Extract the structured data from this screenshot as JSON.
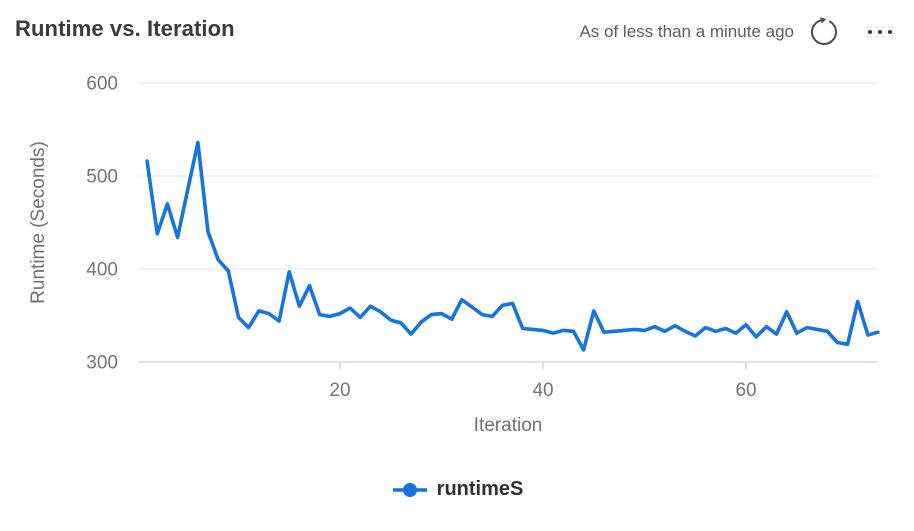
{
  "header": {
    "title": "Runtime vs. Iteration",
    "as_of_text": "As of less than a minute ago",
    "refresh_icon": "refresh-icon",
    "more_icon": "ellipsis-icon"
  },
  "colors": {
    "series_blue": "#1673E0",
    "gridline": "#e9e9e9",
    "axis_line": "#c9cfe8",
    "tick_label": "#757575",
    "axis_title": "#717171",
    "title_text": "#3a3a3a",
    "asof_text": "#5f5d5b",
    "legend_text": "#31302e",
    "icon_gray": "#4c4a48"
  },
  "chart_data": {
    "type": "line",
    "title": "Runtime vs. Iteration",
    "xlabel": "Iteration",
    "ylabel": "Runtime (Seconds)",
    "x_ticks": [
      20,
      40,
      60
    ],
    "y_ticks": [
      600,
      500,
      400,
      300
    ],
    "xlim": [
      0.2,
      72.9
    ],
    "ylim": [
      300,
      600
    ],
    "grid": "horizontal",
    "legend_position": "bottom",
    "x_start": 1,
    "series": [
      {
        "name": "runtimeS",
        "color": "#1673E0",
        "values": [
          516,
          438,
          470,
          434,
          485,
          536,
          440,
          410,
          398,
          348,
          337,
          355,
          352,
          344,
          397,
          360,
          382,
          351,
          349,
          352,
          358,
          348,
          360,
          354,
          345,
          342,
          330,
          343,
          351,
          352,
          346,
          367,
          359,
          351,
          349,
          361,
          363,
          336,
          335,
          334,
          331,
          334,
          333,
          313,
          355,
          332,
          333,
          334,
          335,
          334,
          338,
          333,
          339,
          333,
          328,
          337,
          333,
          336,
          331,
          340,
          327,
          338,
          330,
          354,
          331,
          337,
          335,
          333,
          321,
          319,
          365,
          329,
          332
        ]
      }
    ]
  }
}
